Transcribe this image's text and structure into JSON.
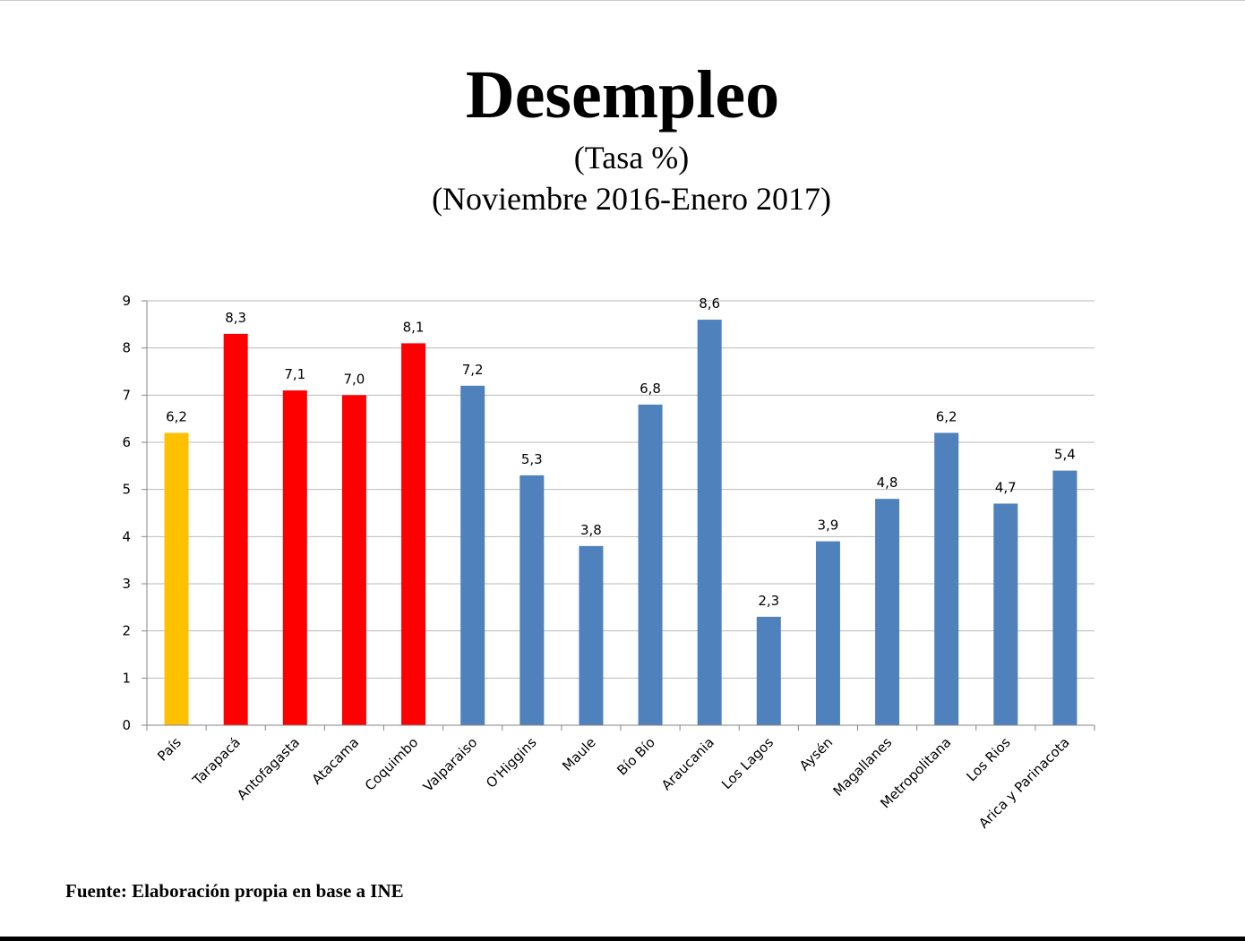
{
  "title": "Desempleo",
  "subtitle_1": "(Tasa %)",
  "subtitle_2": "(Noviembre 2016-Enero 2017)",
  "source": "Fuente: Elaboración propia en base a INE",
  "colors": {
    "pais": "#ffc000",
    "norte": "#ff0000",
    "resto": "#4f81bd",
    "grid": "#b9b9b9",
    "axis": "#868686"
  },
  "chart_data": {
    "type": "bar",
    "title": "Desempleo",
    "xlabel": "",
    "ylabel": "",
    "ylim": [
      0,
      9
    ],
    "yticks": [
      "0",
      "1",
      "2",
      "3",
      "4",
      "5",
      "6",
      "7",
      "8",
      "9"
    ],
    "grid": true,
    "legend": "none",
    "categories": [
      "País",
      "Tarapacá",
      "Antofagasta",
      "Atacama",
      "Coquimbo",
      "Valparaiso",
      "O'Higgins",
      "Maule",
      "Bío Bío",
      "Araucania",
      "Los Lagos",
      "Aysén",
      "Magallanes",
      "Metropolitana",
      "Los Rios",
      "Arica y Parinacota"
    ],
    "values": [
      6.2,
      8.3,
      7.1,
      7.0,
      8.1,
      7.2,
      5.3,
      3.8,
      6.8,
      8.6,
      2.3,
      3.9,
      4.8,
      6.2,
      4.7,
      5.4
    ],
    "value_labels": [
      "6,2",
      "8,3",
      "7,1",
      "7,0",
      "8,1",
      "7,2",
      "5,3",
      "3,8",
      "6,8",
      "8,6",
      "2,3",
      "3,9",
      "4,8",
      "6,2",
      "4,7",
      "5,4"
    ],
    "bar_colors": [
      "#ffc000",
      "#ff0000",
      "#ff0000",
      "#ff0000",
      "#ff0000",
      "#4f81bd",
      "#4f81bd",
      "#4f81bd",
      "#4f81bd",
      "#4f81bd",
      "#4f81bd",
      "#4f81bd",
      "#4f81bd",
      "#4f81bd",
      "#4f81bd",
      "#4f81bd"
    ]
  }
}
